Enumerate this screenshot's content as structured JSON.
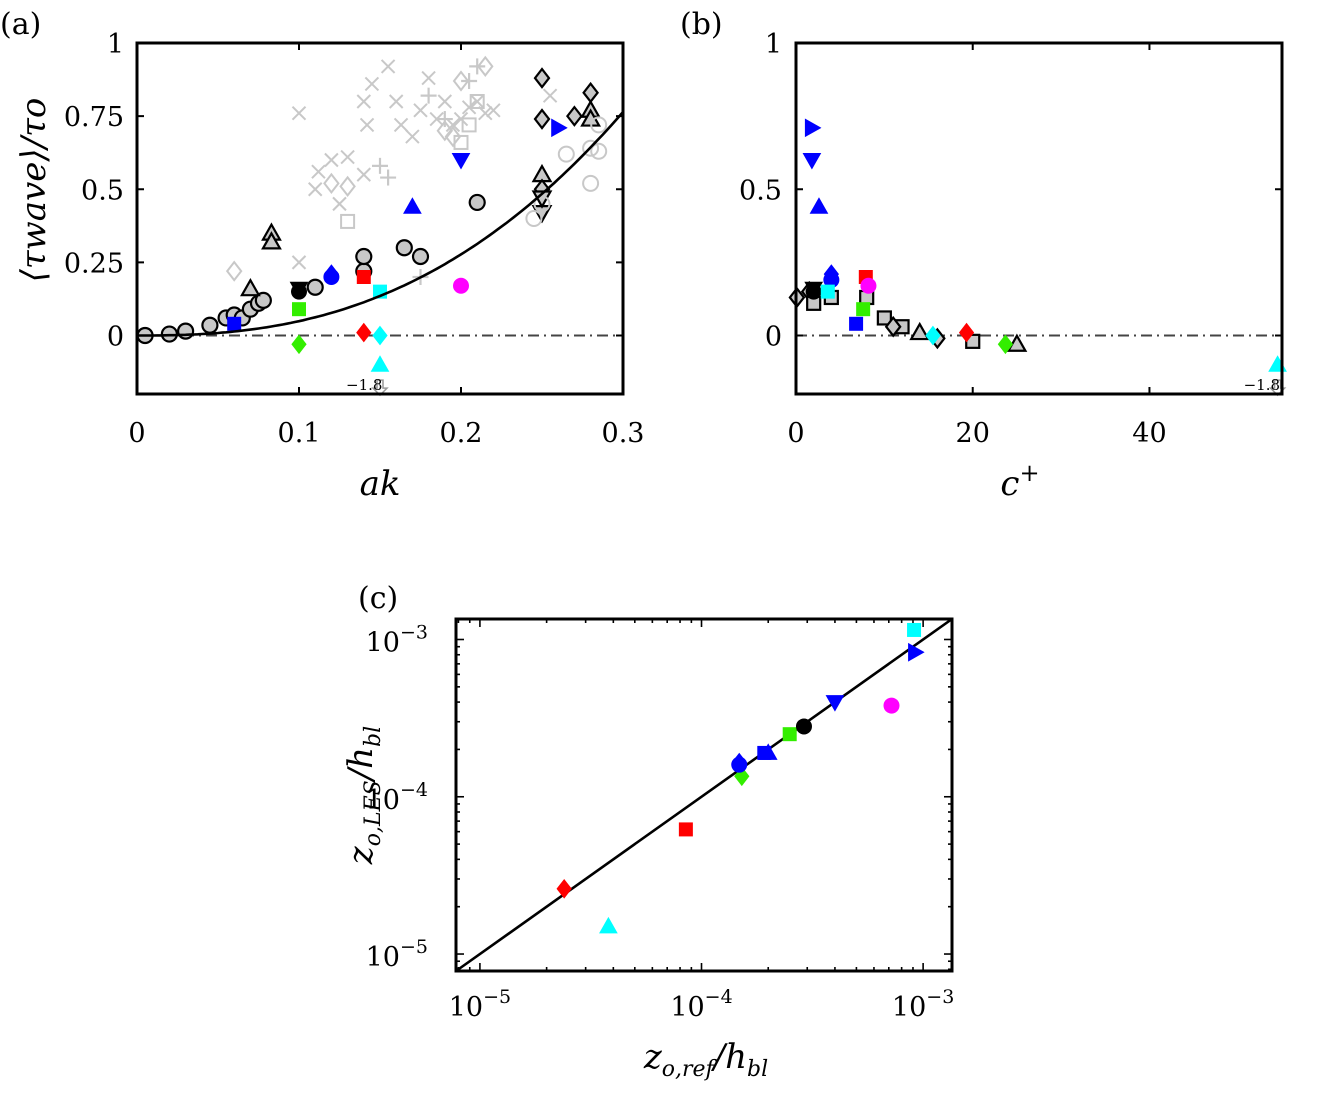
{
  "colors": {
    "gray_marker": "#c8c8c8",
    "light_gray": "#c8c8c8",
    "blue": "#0000ff",
    "red": "#ff0000",
    "green": "#33ee00",
    "cyan": "#00ffff",
    "magenta": "#ff00ff",
    "black": "#000000"
  },
  "chart_data": [
    {
      "panel": "(a)",
      "type": "scatter",
      "xlabel": "ak",
      "ylabel": "⟨τwave⟩/τo",
      "xlim": [
        0,
        0.3
      ],
      "ylim": [
        -0.2,
        1
      ],
      "xticks": [
        "0",
        "0.1",
        "0.2",
        "0.3"
      ],
      "yticks": [
        "0",
        "0.25",
        "0.5",
        "0.75",
        "1"
      ],
      "annotation": "−1.8",
      "reference_line": {
        "y": 0,
        "style": "dash-dot"
      },
      "fit_curve": {
        "type": "power",
        "coef": 15.5,
        "exponent": 2.5
      },
      "series": [
        {
          "marker": "circle",
          "style": "gray",
          "points": [
            [
              0.005,
              0.0
            ],
            [
              0.02,
              0.005
            ],
            [
              0.03,
              0.015
            ],
            [
              0.045,
              0.035
            ],
            [
              0.055,
              0.06
            ],
            [
              0.06,
              0.07
            ],
            [
              0.065,
              0.06
            ],
            [
              0.07,
              0.09
            ],
            [
              0.075,
              0.11
            ],
            [
              0.078,
              0.12
            ],
            [
              0.11,
              0.165
            ],
            [
              0.14,
              0.22
            ],
            [
              0.14,
              0.27
            ],
            [
              0.165,
              0.3
            ],
            [
              0.175,
              0.27
            ],
            [
              0.21,
              0.455
            ]
          ]
        },
        {
          "marker": "triangle-up",
          "style": "gray",
          "points": [
            [
              0.07,
              0.16
            ],
            [
              0.083,
              0.35
            ],
            [
              0.083,
              0.32
            ],
            [
              0.25,
              0.55
            ],
            [
              0.28,
              0.77
            ],
            [
              0.28,
              0.74
            ]
          ]
        },
        {
          "marker": "diamond",
          "style": "gray",
          "points": [
            [
              0.25,
              0.88
            ],
            [
              0.25,
              0.74
            ],
            [
              0.27,
              0.75
            ],
            [
              0.28,
              0.83
            ],
            [
              0.25,
              0.5
            ]
          ]
        },
        {
          "marker": "triangle-down",
          "style": "gray",
          "points": [
            [
              0.25,
              0.42
            ],
            [
              0.25,
              0.47
            ]
          ]
        },
        {
          "marker": "circle",
          "style": "light-open",
          "points": [
            [
              0.245,
              0.4
            ],
            [
              0.25,
              0.45
            ],
            [
              0.265,
              0.62
            ],
            [
              0.28,
              0.52
            ],
            [
              0.28,
              0.64
            ],
            [
              0.285,
              0.63
            ],
            [
              0.285,
              0.72
            ]
          ]
        },
        {
          "marker": "x",
          "style": "light",
          "points": [
            [
              0.1,
              0.76
            ],
            [
              0.1,
              0.25
            ],
            [
              0.11,
              0.5
            ],
            [
              0.112,
              0.56
            ],
            [
              0.12,
              0.6
            ],
            [
              0.125,
              0.45
            ],
            [
              0.13,
              0.61
            ],
            [
              0.14,
              0.55
            ],
            [
              0.14,
              0.8
            ],
            [
              0.142,
              0.72
            ],
            [
              0.145,
              0.86
            ],
            [
              0.155,
              0.92
            ],
            [
              0.16,
              0.8
            ],
            [
              0.163,
              0.72
            ],
            [
              0.17,
              0.68
            ],
            [
              0.175,
              0.77
            ],
            [
              0.18,
              0.88
            ],
            [
              0.185,
              0.74
            ],
            [
              0.19,
              0.8
            ],
            [
              0.195,
              0.72
            ],
            [
              0.2,
              0.74
            ],
            [
              0.205,
              0.78
            ],
            [
              0.21,
              0.8
            ],
            [
              0.215,
              0.76
            ],
            [
              0.22,
              0.77
            ],
            [
              0.255,
              0.82
            ]
          ]
        },
        {
          "marker": "plus",
          "style": "light",
          "points": [
            [
              0.15,
              0.58
            ],
            [
              0.155,
              0.54
            ],
            [
              0.175,
              0.2
            ],
            [
              0.18,
              0.82
            ],
            [
              0.19,
              0.74
            ],
            [
              0.205,
              0.87
            ],
            [
              0.21,
              0.92
            ]
          ]
        },
        {
          "marker": "diamond",
          "style": "light-open",
          "points": [
            [
              0.06,
              0.22
            ],
            [
              0.12,
              0.52
            ],
            [
              0.13,
              0.51
            ],
            [
              0.19,
              0.7
            ],
            [
              0.195,
              0.68
            ],
            [
              0.2,
              0.87
            ],
            [
              0.215,
              0.92
            ]
          ]
        },
        {
          "marker": "square",
          "style": "light-open",
          "points": [
            [
              0.13,
              0.39
            ],
            [
              0.2,
              0.66
            ],
            [
              0.205,
              0.72
            ],
            [
              0.21,
              0.8
            ]
          ]
        },
        {
          "marker": "square",
          "style": "blue",
          "points": [
            [
              0.06,
              0.04
            ]
          ]
        },
        {
          "marker": "diamond",
          "style": "blue",
          "points": [
            [
              0.12,
              0.21
            ]
          ]
        },
        {
          "marker": "circle",
          "style": "blue",
          "points": [
            [
              0.12,
              0.2
            ]
          ]
        },
        {
          "marker": "triangle-up",
          "style": "blue",
          "points": [
            [
              0.17,
              0.44
            ]
          ]
        },
        {
          "marker": "triangle-down",
          "style": "blue",
          "points": [
            [
              0.2,
              0.6
            ]
          ]
        },
        {
          "marker": "triangle-right",
          "style": "blue",
          "points": [
            [
              0.26,
              0.71
            ]
          ]
        },
        {
          "marker": "square",
          "style": "red",
          "points": [
            [
              0.14,
              0.2
            ]
          ]
        },
        {
          "marker": "diamond",
          "style": "red",
          "points": [
            [
              0.14,
              0.01
            ]
          ]
        },
        {
          "marker": "square",
          "style": "green",
          "points": [
            [
              0.1,
              0.09
            ]
          ]
        },
        {
          "marker": "diamond",
          "style": "green",
          "points": [
            [
              0.1,
              -0.03
            ]
          ]
        },
        {
          "marker": "square",
          "style": "cyan",
          "points": [
            [
              0.15,
              0.15
            ]
          ]
        },
        {
          "marker": "diamond",
          "style": "cyan",
          "points": [
            [
              0.15,
              0.0
            ]
          ]
        },
        {
          "marker": "triangle-up",
          "style": "cyan",
          "points": [
            [
              0.15,
              -0.1
            ]
          ]
        },
        {
          "marker": "circle",
          "style": "magenta",
          "points": [
            [
              0.2,
              0.17
            ]
          ]
        },
        {
          "marker": "circle",
          "style": "black",
          "points": [
            [
              0.1,
              0.15
            ]
          ]
        },
        {
          "marker": "triangle-down",
          "style": "black",
          "points": [
            [
              0.1,
              0.16
            ]
          ]
        },
        {
          "marker": "arrow-down",
          "style": "open-gray",
          "points": [
            [
              0.15,
              -0.18
            ]
          ]
        }
      ]
    },
    {
      "panel": "(b)",
      "type": "scatter",
      "xlabel": "c+",
      "ylabel": "",
      "xlim": [
        0,
        55
      ],
      "ylim": [
        -0.2,
        1
      ],
      "xticks": [
        "0",
        "20",
        "40"
      ],
      "yticks": [
        "0",
        "0.5",
        "1"
      ],
      "annotation": "−1.8",
      "reference_line": {
        "y": 0,
        "style": "dash-dot"
      },
      "series": [
        {
          "marker": "diamond",
          "style": "gray",
          "points": [
            [
              0.1,
              0.13
            ],
            [
              1.5,
              0.15
            ]
          ]
        },
        {
          "marker": "square",
          "style": "gray-open",
          "points": [
            [
              2,
              0.11
            ],
            [
              4,
              0.13
            ],
            [
              8,
              0.13
            ],
            [
              10,
              0.06
            ],
            [
              12,
              0.03
            ],
            [
              20,
              -0.02
            ]
          ]
        },
        {
          "marker": "diamond",
          "style": "gray-open",
          "points": [
            [
              11,
              0.03
            ],
            [
              16,
              -0.01
            ]
          ]
        },
        {
          "marker": "triangle-up",
          "style": "gray-open",
          "points": [
            [
              14,
              0.01
            ],
            [
              25,
              -0.03
            ]
          ]
        },
        {
          "marker": "circle",
          "style": "black",
          "points": [
            [
              2,
              0.15
            ]
          ]
        },
        {
          "marker": "triangle-down",
          "style": "black",
          "points": [
            [
              2,
              0.16
            ]
          ]
        },
        {
          "marker": "triangle-right",
          "style": "blue",
          "points": [
            [
              1.8,
              0.71
            ]
          ]
        },
        {
          "marker": "triangle-down",
          "style": "blue",
          "points": [
            [
              1.8,
              0.6
            ]
          ]
        },
        {
          "marker": "triangle-up",
          "style": "blue",
          "points": [
            [
              2.6,
              0.44
            ]
          ]
        },
        {
          "marker": "diamond",
          "style": "blue",
          "points": [
            [
              4,
              0.21
            ]
          ]
        },
        {
          "marker": "circle",
          "style": "blue",
          "points": [
            [
              4,
              0.19
            ]
          ]
        },
        {
          "marker": "square",
          "style": "blue",
          "points": [
            [
              6.8,
              0.04
            ]
          ]
        },
        {
          "marker": "square",
          "style": "cyan",
          "points": [
            [
              3.6,
              0.15
            ]
          ]
        },
        {
          "marker": "diamond",
          "style": "cyan",
          "points": [
            [
              15.5,
              0.0
            ]
          ]
        },
        {
          "marker": "triangle-up",
          "style": "cyan",
          "points": [
            [
              54.5,
              -0.1
            ]
          ]
        },
        {
          "marker": "square",
          "style": "red",
          "points": [
            [
              7.9,
              0.2
            ]
          ]
        },
        {
          "marker": "diamond",
          "style": "red",
          "points": [
            [
              19.3,
              0.01
            ]
          ]
        },
        {
          "marker": "square",
          "style": "green",
          "points": [
            [
              7.6,
              0.09
            ]
          ]
        },
        {
          "marker": "diamond",
          "style": "green",
          "points": [
            [
              23.7,
              -0.03
            ]
          ]
        },
        {
          "marker": "circle",
          "style": "magenta",
          "points": [
            [
              8.2,
              0.17
            ]
          ]
        },
        {
          "marker": "arrow-down",
          "style": "open-gray",
          "points": [
            [
              54.5,
              -0.18
            ]
          ]
        }
      ]
    },
    {
      "panel": "(c)",
      "type": "scatter",
      "xlabel": "zo,ref/hbl",
      "ylabel": "zo,LES/hbl",
      "xscale": "log",
      "yscale": "log",
      "xlim": [
        7.8e-06,
        0.00135
      ],
      "ylim": [
        7.8e-06,
        0.00135
      ],
      "xticks": [
        {
          "base": "10",
          "exp": "−5"
        },
        {
          "base": "10",
          "exp": "−4"
        },
        {
          "base": "10",
          "exp": "−3"
        }
      ],
      "yticks": [
        {
          "base": "10",
          "exp": "−5"
        },
        {
          "base": "10",
          "exp": "−4"
        },
        {
          "base": "10",
          "exp": "−3"
        }
      ],
      "reference_line": {
        "type": "identity"
      },
      "series": [
        {
          "marker": "diamond",
          "style": "red",
          "points": [
            [
              2.4e-05,
              2.6e-05
            ]
          ]
        },
        {
          "marker": "square",
          "style": "red",
          "points": [
            [
              8.5e-05,
              6.2e-05
            ]
          ]
        },
        {
          "marker": "triangle-up",
          "style": "cyan",
          "points": [
            [
              3.8e-05,
              1.5e-05
            ]
          ]
        },
        {
          "marker": "diamond",
          "style": "green",
          "points": [
            [
              0.000152,
              0.000135
            ]
          ]
        },
        {
          "marker": "square",
          "style": "green",
          "points": [
            [
              0.00025,
              0.00025
            ]
          ]
        },
        {
          "marker": "circle",
          "style": "blue",
          "points": [
            [
              0.000148,
              0.00016
            ]
          ]
        },
        {
          "marker": "diamond",
          "style": "blue",
          "points": [
            [
              0.000148,
              0.000165
            ]
          ]
        },
        {
          "marker": "square",
          "style": "blue",
          "points": [
            [
              0.000192,
              0.00019
            ]
          ]
        },
        {
          "marker": "triangle-up",
          "style": "blue",
          "points": [
            [
              0.0002,
              0.00019
            ]
          ]
        },
        {
          "marker": "triangle-down",
          "style": "blue",
          "points": [
            [
              0.0004,
              0.0004
            ]
          ]
        },
        {
          "marker": "triangle-right",
          "style": "blue",
          "points": [
            [
              0.00092,
              0.00083
            ]
          ]
        },
        {
          "marker": "circle",
          "style": "black",
          "points": [
            [
              0.00029,
              0.00028
            ]
          ]
        },
        {
          "marker": "circle",
          "style": "magenta",
          "points": [
            [
              0.00072,
              0.00038
            ]
          ]
        },
        {
          "marker": "square",
          "style": "cyan",
          "points": [
            [
              0.00091,
              0.00115
            ]
          ]
        }
      ]
    }
  ]
}
